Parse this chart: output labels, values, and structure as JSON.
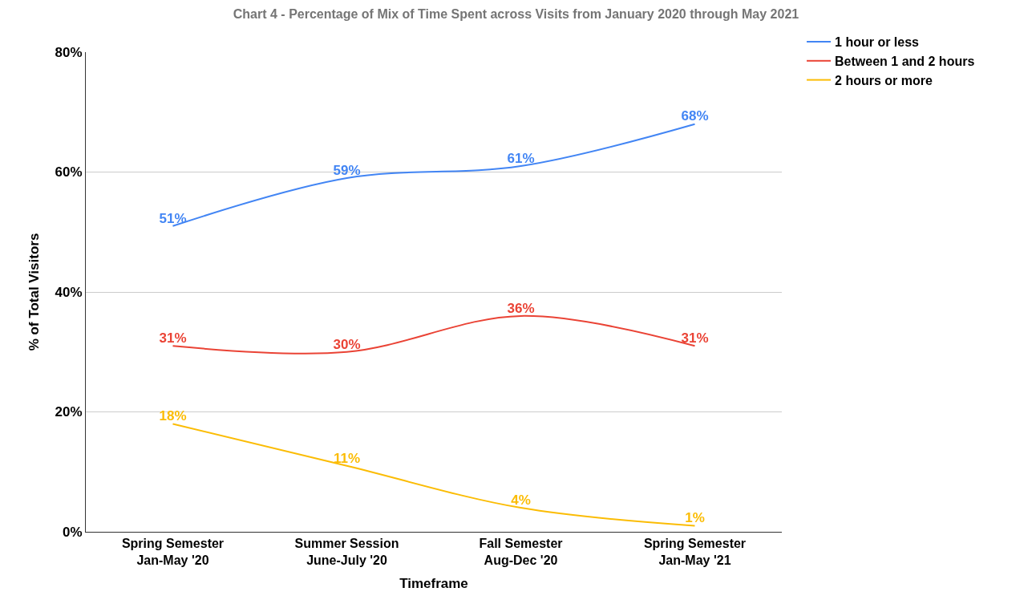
{
  "chart_data": {
    "type": "line",
    "title": "Chart 4 - Percentage of Mix of Time Spent across Visits from January 2020 through May 2021",
    "xlabel": "Timeframe",
    "ylabel": "% of Total Visitors",
    "categories": [
      "Spring Semester\nJan-May '20",
      "Summer Session\nJune-July '20",
      "Fall Semester\nAug-Dec '20",
      "Spring Semester\nJan-May '21"
    ],
    "series": [
      {
        "name": "1 hour or less",
        "color": "#4285f4",
        "values": [
          51,
          59,
          61,
          68
        ],
        "value_labels": [
          "51%",
          "59%",
          "61%",
          "68%"
        ]
      },
      {
        "name": "Between 1 and 2 hours",
        "color": "#ea4335",
        "values": [
          31,
          30,
          36,
          31
        ],
        "value_labels": [
          "31%",
          "30%",
          "36%",
          "31%"
        ]
      },
      {
        "name": "2 hours or more",
        "color": "#fbbc04",
        "values": [
          18,
          11,
          4,
          1
        ],
        "value_labels": [
          "18%",
          "11%",
          "4%",
          "1%"
        ]
      }
    ],
    "ylim": [
      0,
      80
    ],
    "yticks": [
      {
        "value": 0,
        "label": "0%"
      },
      {
        "value": 20,
        "label": "20%"
      },
      {
        "value": 40,
        "label": "40%"
      },
      {
        "value": 60,
        "label": "60%"
      },
      {
        "value": 80,
        "label": "80%"
      }
    ],
    "grid": "y",
    "legend": "top right",
    "marker": "none",
    "line_style": "solid"
  }
}
